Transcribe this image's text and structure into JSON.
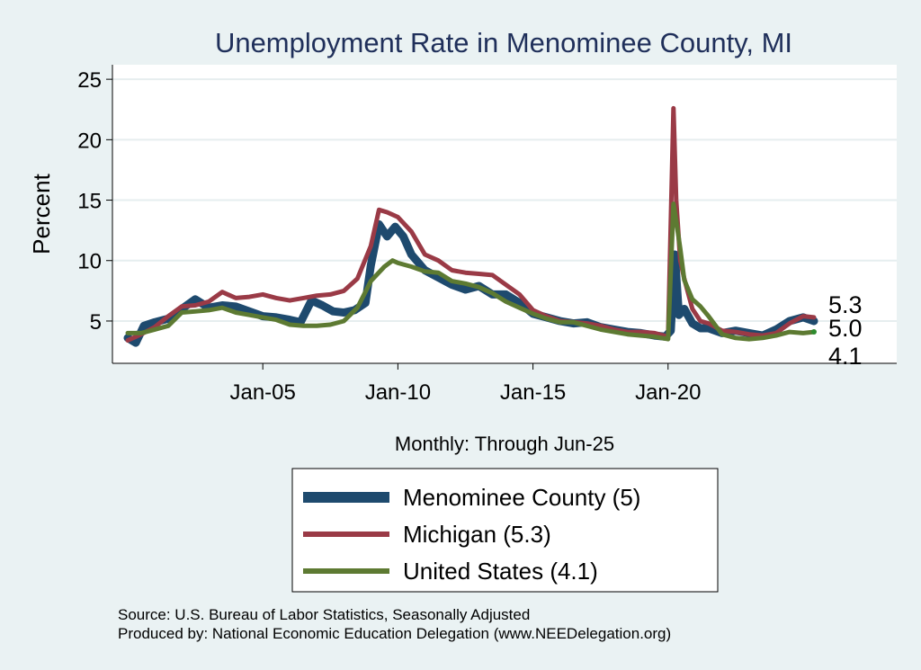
{
  "chart_data": {
    "type": "line",
    "title": "Unemployment Rate in Menominee  County, MI",
    "xlabel": "Monthly: Through Jun-25",
    "ylabel": "Percent",
    "xlim": [
      2000.0,
      2025.9
    ],
    "ylim": [
      1.5,
      26.2
    ],
    "yticks": [
      5,
      10,
      15,
      20,
      25
    ],
    "xticks": [
      {
        "value": 2005.0,
        "label": "Jan-05"
      },
      {
        "value": 2010.0,
        "label": "Jan-10"
      },
      {
        "value": 2015.0,
        "label": "Jan-15"
      },
      {
        "value": 2020.0,
        "label": "Jan-20"
      }
    ],
    "grid": true,
    "series": [
      {
        "name": "Menominee  County",
        "legend": "Menominee  County (5)",
        "color": "#1e4a6e",
        "end_label": "5.0",
        "x": [
          2000.0,
          2000.3,
          2000.6,
          2001.0,
          2001.5,
          2002.0,
          2002.5,
          2003.0,
          2003.5,
          2004.0,
          2004.5,
          2005.0,
          2005.5,
          2006.0,
          2006.4,
          2006.8,
          2007.2,
          2007.6,
          2008.0,
          2008.4,
          2008.8,
          2009.0,
          2009.3,
          2009.6,
          2009.9,
          2010.2,
          2010.5,
          2011.0,
          2011.5,
          2012.0,
          2012.5,
          2013.0,
          2013.5,
          2014.0,
          2014.5,
          2015.0,
          2015.5,
          2016.0,
          2016.5,
          2017.0,
          2017.5,
          2018.0,
          2018.5,
          2019.0,
          2019.5,
          2019.9,
          2020.1,
          2020.25,
          2020.4,
          2020.6,
          2020.9,
          2021.2,
          2021.5,
          2022.0,
          2022.5,
          2023.0,
          2023.5,
          2024.0,
          2024.5,
          2025.0,
          2025.4
        ],
        "values": [
          3.6,
          3.2,
          4.6,
          4.9,
          5.2,
          6.0,
          6.8,
          6.1,
          6.3,
          6.2,
          5.8,
          5.4,
          5.3,
          5.1,
          4.9,
          6.7,
          6.3,
          5.8,
          5.7,
          5.9,
          6.5,
          9.6,
          13.0,
          12.0,
          12.8,
          12.0,
          10.5,
          9.2,
          8.6,
          8.0,
          7.6,
          7.9,
          7.2,
          7.2,
          6.5,
          5.6,
          5.3,
          5.0,
          4.8,
          4.9,
          4.5,
          4.3,
          4.1,
          4.0,
          3.8,
          3.7,
          4.2,
          10.5,
          5.5,
          6.0,
          4.8,
          4.4,
          4.4,
          4.0,
          4.2,
          4.0,
          3.8,
          4.3,
          5.0,
          5.3,
          5.0
        ]
      },
      {
        "name": "Michigan",
        "legend": "Michigan (5.3)",
        "color": "#9a3a46",
        "end_label": "5.3",
        "x": [
          2000.0,
          2000.5,
          2001.0,
          2001.5,
          2002.0,
          2002.5,
          2003.0,
          2003.5,
          2004.0,
          2004.5,
          2005.0,
          2005.5,
          2006.0,
          2006.5,
          2007.0,
          2007.5,
          2008.0,
          2008.5,
          2009.0,
          2009.3,
          2009.6,
          2010.0,
          2010.5,
          2011.0,
          2011.5,
          2012.0,
          2012.5,
          2013.0,
          2013.5,
          2014.0,
          2014.5,
          2015.0,
          2015.5,
          2016.0,
          2016.5,
          2017.0,
          2017.5,
          2018.0,
          2018.5,
          2019.0,
          2019.5,
          2020.0,
          2020.2,
          2020.3,
          2020.45,
          2020.6,
          2020.9,
          2021.2,
          2021.5,
          2022.0,
          2022.5,
          2023.0,
          2023.5,
          2024.0,
          2024.5,
          2025.0,
          2025.4
        ],
        "values": [
          3.4,
          3.9,
          4.5,
          5.4,
          6.2,
          6.3,
          6.6,
          7.4,
          6.9,
          7.0,
          7.2,
          6.9,
          6.7,
          6.9,
          7.1,
          7.2,
          7.5,
          8.5,
          11.2,
          14.2,
          14.0,
          13.6,
          12.4,
          10.5,
          10.0,
          9.2,
          9.0,
          8.9,
          8.8,
          8.0,
          7.2,
          5.9,
          5.4,
          5.0,
          4.9,
          4.8,
          4.6,
          4.3,
          4.1,
          4.1,
          4.0,
          3.7,
          22.6,
          15.0,
          10.0,
          8.5,
          6.0,
          5.0,
          4.8,
          4.2,
          4.1,
          3.9,
          3.8,
          4.0,
          4.8,
          5.4,
          5.3
        ]
      },
      {
        "name": "United States",
        "legend": "United States (4.1)",
        "color": "#5d7a32",
        "end_label": "4.1",
        "x": [
          2000.0,
          2000.5,
          2001.0,
          2001.5,
          2002.0,
          2002.5,
          2003.0,
          2003.5,
          2004.0,
          2004.5,
          2005.0,
          2005.5,
          2006.0,
          2006.5,
          2007.0,
          2007.5,
          2008.0,
          2008.5,
          2009.0,
          2009.5,
          2009.8,
          2010.0,
          2010.5,
          2011.0,
          2011.5,
          2012.0,
          2012.5,
          2013.0,
          2013.5,
          2014.0,
          2014.5,
          2015.0,
          2015.5,
          2016.0,
          2016.5,
          2017.0,
          2017.5,
          2018.0,
          2018.5,
          2019.0,
          2019.5,
          2020.0,
          2020.2,
          2020.3,
          2020.45,
          2020.6,
          2020.9,
          2021.2,
          2021.5,
          2022.0,
          2022.5,
          2023.0,
          2023.5,
          2024.0,
          2024.5,
          2025.0,
          2025.4
        ],
        "values": [
          4.0,
          4.0,
          4.3,
          4.6,
          5.7,
          5.8,
          5.9,
          6.1,
          5.7,
          5.5,
          5.3,
          5.1,
          4.7,
          4.6,
          4.6,
          4.7,
          5.0,
          6.1,
          8.3,
          9.5,
          10.0,
          9.8,
          9.5,
          9.1,
          9.0,
          8.3,
          8.1,
          7.8,
          7.3,
          6.6,
          6.1,
          5.6,
          5.2,
          4.9,
          4.9,
          4.6,
          4.3,
          4.1,
          3.9,
          3.8,
          3.7,
          3.5,
          14.7,
          13.3,
          11.0,
          8.4,
          6.8,
          6.2,
          5.4,
          3.9,
          3.6,
          3.5,
          3.6,
          3.8,
          4.1,
          4.0,
          4.1
        ]
      }
    ]
  },
  "footer": {
    "source": "Source: U.S. Bureau of Labor Statistics, Seasonally Adjusted",
    "producer": "Produced by: National Economic Education Delegation (www.NEEDelegation.org)"
  }
}
